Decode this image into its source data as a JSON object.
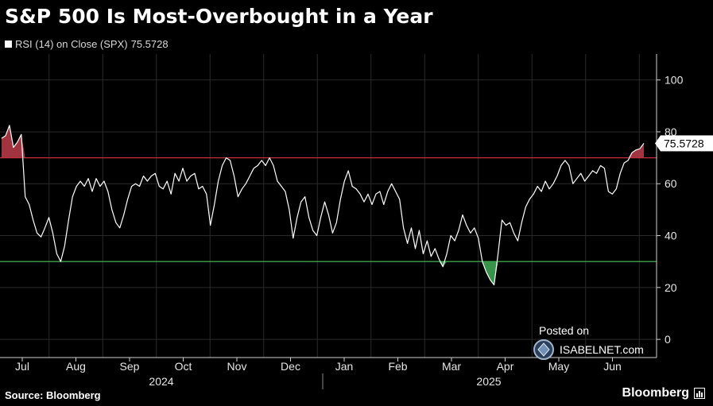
{
  "title": "S&P 500 Is Most-Overbought in a Year",
  "legend": {
    "series_label": "RSI (14)  on Close (SPX)",
    "last_value": "75.5728"
  },
  "footer": {
    "source": "Source: Bloomberg",
    "brand": "Bloomberg"
  },
  "watermark": {
    "posted_on": "Posted on",
    "site": "ISABELNET.com",
    "icon": "isabelnet-logo-icon"
  },
  "chart_data": {
    "type": "line",
    "title": "S&P 500 Is Most-Overbought in a Year",
    "series": [
      {
        "name": "RSI (14)  on Close (SPX)",
        "values": [
          77.5,
          78.5,
          82.5,
          74,
          76,
          79,
          55,
          52,
          46,
          41,
          39.5,
          43,
          47,
          41,
          33,
          30,
          36,
          46,
          55,
          59,
          61,
          59,
          62,
          57,
          62,
          59,
          61,
          57,
          50,
          45,
          43,
          48,
          54,
          59,
          60,
          59,
          63,
          61,
          63,
          64,
          59,
          58,
          61,
          56,
          64,
          61,
          66,
          61,
          63,
          64,
          58,
          59,
          56,
          44,
          52,
          61,
          67,
          70,
          69,
          63,
          55,
          58,
          60,
          63,
          66,
          67,
          69,
          67,
          70,
          67,
          61,
          59,
          57,
          50,
          39,
          47,
          53,
          55,
          47,
          42,
          40,
          47,
          53,
          48,
          41,
          45,
          54,
          61,
          65,
          59,
          58,
          56,
          53,
          56,
          52,
          56,
          57,
          52,
          57,
          60,
          57,
          54,
          43,
          37,
          43,
          35,
          42,
          33,
          38,
          32,
          35,
          31,
          28,
          33,
          40,
          38,
          42,
          48,
          44,
          41,
          43,
          39,
          30,
          26,
          23,
          21,
          33,
          46,
          44,
          45,
          41,
          38,
          45,
          51,
          54,
          56,
          59,
          57,
          61,
          58,
          60,
          63,
          67,
          69,
          67,
          60,
          62,
          64,
          61,
          63,
          65,
          64,
          67,
          66,
          57,
          56,
          58,
          64,
          68,
          69,
          72,
          73,
          73.5,
          75.5728
        ]
      }
    ],
    "ylim": [
      -7,
      110
    ],
    "yticks": [
      0,
      20,
      40,
      60,
      80,
      100
    ],
    "reference_lines": [
      {
        "value": 70,
        "color": "#c0303a"
      },
      {
        "value": 30,
        "color": "#3fa34d"
      }
    ],
    "x_month_labels": [
      "Jul",
      "Aug",
      "Sep",
      "Oct",
      "Nov",
      "Dec",
      "Jan",
      "Feb",
      "Mar",
      "Apr",
      "May",
      "Jun"
    ],
    "x_year_labels": [
      "2024",
      "2025"
    ],
    "grid": true,
    "line_color": "#ffffff",
    "overbought_fill": "#b33a45",
    "oversold_fill": "#3ea352",
    "last_value_label": "75.5728"
  }
}
